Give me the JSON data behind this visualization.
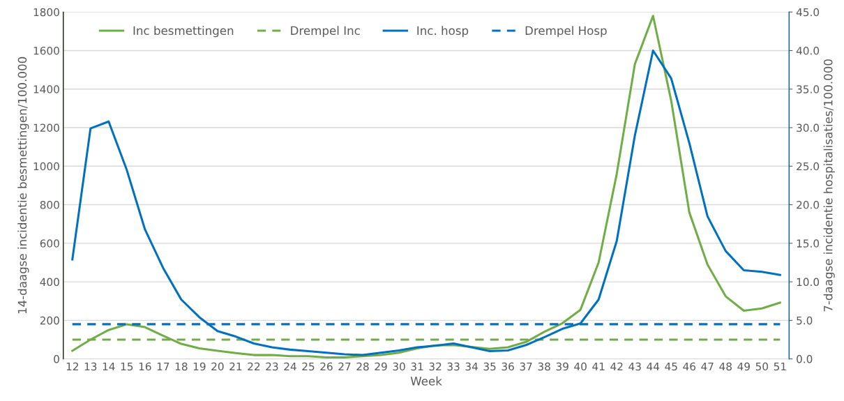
{
  "chart_data": {
    "type": "line",
    "xlabel": "Week",
    "ylabel": "14-daagse incidentie besmettingen/100.000",
    "y2label": "7-daagse incidentie hospitalisaties/100.000",
    "categories": [
      "12",
      "13",
      "14",
      "15",
      "16",
      "17",
      "18",
      "19",
      "20",
      "21",
      "22",
      "23",
      "24",
      "25",
      "26",
      "27",
      "28",
      "29",
      "30",
      "31",
      "32",
      "33",
      "34",
      "35",
      "36",
      "37",
      "38",
      "39",
      "40",
      "41",
      "42",
      "43",
      "44",
      "45",
      "46",
      "47",
      "48",
      "49",
      "50",
      "51"
    ],
    "series": [
      {
        "name": "Inc besmettingen",
        "color": "#70ad47",
        "line_style": "solid",
        "values": [
          42,
          100,
          150,
          180,
          165,
          120,
          78,
          55,
          42,
          30,
          20,
          20,
          14,
          14,
          8,
          8,
          14,
          20,
          32,
          55,
          70,
          72,
          62,
          52,
          60,
          88,
          140,
          185,
          255,
          500,
          960,
          1530,
          1780,
          1340,
          760,
          490,
          325,
          250,
          262,
          292
        ]
      },
      {
        "name": "Drempel Inc",
        "color": "#70ad47",
        "line_style": "dashed",
        "values": [
          100,
          100,
          100,
          100,
          100,
          100,
          100,
          100,
          100,
          100,
          100,
          100,
          100,
          100,
          100,
          100,
          100,
          100,
          100,
          100,
          100,
          100,
          100,
          100,
          100,
          100,
          100,
          100,
          100,
          100,
          100,
          100,
          100,
          100,
          100,
          100,
          100,
          100,
          100,
          100
        ]
      },
      {
        "name": "Inc. hosp",
        "color": "#0070c0",
        "line_style": "solid",
        "axis": "y2",
        "values": [
          12.9,
          29.9,
          30.8,
          24.5,
          16.8,
          11.8,
          7.7,
          5.4,
          3.6,
          2.9,
          2.0,
          1.5,
          1.2,
          1.0,
          0.8,
          0.6,
          0.5,
          0.8,
          1.1,
          1.5,
          1.7,
          2.0,
          1.5,
          1.0,
          1.1,
          1.8,
          2.8,
          3.9,
          4.6,
          7.7,
          15.3,
          29.0,
          40.0,
          36.4,
          28.0,
          18.5,
          14.0,
          11.5,
          11.3,
          10.9
        ]
      },
      {
        "name": "Drempel Hosp",
        "color": "#0070c0",
        "line_style": "dashed",
        "axis": "y2",
        "values": [
          4.5,
          4.5,
          4.5,
          4.5,
          4.5,
          4.5,
          4.5,
          4.5,
          4.5,
          4.5,
          4.5,
          4.5,
          4.5,
          4.5,
          4.5,
          4.5,
          4.5,
          4.5,
          4.5,
          4.5,
          4.5,
          4.5,
          4.5,
          4.5,
          4.5,
          4.5,
          4.5,
          4.5,
          4.5,
          4.5,
          4.5,
          4.5,
          4.5,
          4.5,
          4.5,
          4.5,
          4.5,
          4.5,
          4.5,
          4.5
        ]
      }
    ],
    "ylim": [
      0,
      1800
    ],
    "yticks": [
      0,
      200,
      400,
      600,
      800,
      1000,
      1200,
      1400,
      1600,
      1800
    ],
    "y2lim": [
      0,
      45
    ],
    "y2ticks": [
      {
        "value": 0,
        "label": "0.0"
      },
      {
        "value": 5,
        "label": "5.0"
      },
      {
        "value": 10,
        "label": "10.0"
      },
      {
        "value": 15,
        "label": "15.0"
      },
      {
        "value": 20,
        "label": "20.0"
      },
      {
        "value": 25,
        "label": "25.0"
      },
      {
        "value": 30,
        "label": "30.0"
      },
      {
        "value": 35,
        "label": "35.0"
      },
      {
        "value": 40,
        "label": "40.0"
      },
      {
        "value": 45,
        "label": "45.0"
      }
    ],
    "grid": "y",
    "legend": "top",
    "marker": "none"
  }
}
